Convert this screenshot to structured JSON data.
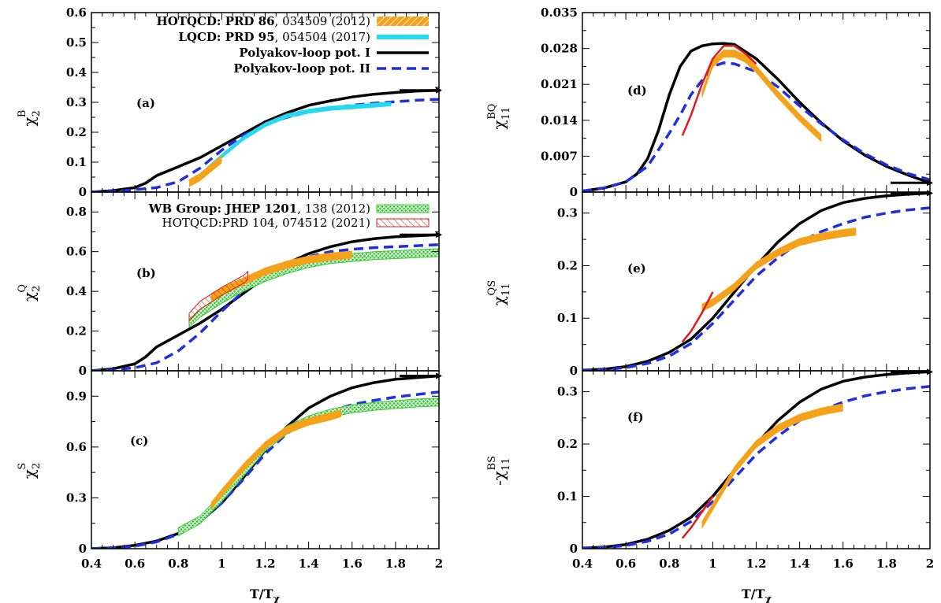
{
  "colors": {
    "hotqcd_band": "#f5a21b",
    "lqcd_band": "#26d9f0",
    "polyakov_I": "#000000",
    "polyakov_II": "#1f2fe0",
    "wb_band": "#33cc33",
    "hotqcd2021": "#e01a1a"
  },
  "legend_top": [
    {
      "label_bold": "HOTQCD: PRD ",
      "label_vol": "86",
      "label_rest": ", 034509 (2012)",
      "style": "hatched-orange"
    },
    {
      "label_bold": "LQCD: PRD ",
      "label_vol": "95",
      "label_rest": ", 054504 (2017)",
      "style": "solid-cyan"
    },
    {
      "label_bold": "Polyakov-loop pot. I",
      "label_vol": "",
      "label_rest": "",
      "style": "solid-black"
    },
    {
      "label_bold": "Polyakov-loop pot. II",
      "label_vol": "",
      "label_rest": "",
      "style": "dashed-blue"
    }
  ],
  "legend_mid": [
    {
      "label_bold": "WB Group: JHEP ",
      "label_vol": "1201",
      "label_rest": ", 138 (2012)",
      "style": "crosshatch-green"
    },
    {
      "label_bold": "",
      "label_vol": "",
      "label_rest": "HOTQCD:PRD 104, 074512 (2021)",
      "style": "hatch-red"
    }
  ],
  "xlabel": "T/T",
  "xlabel_sub": "χ",
  "chart_data": [
    {
      "type": "line",
      "tag": "(a)",
      "ylabel": "χ",
      "ylabel_sub": "2",
      "ylabel_sup": "B",
      "xlim": [
        0.4,
        2.0
      ],
      "ylim": [
        0,
        0.6
      ],
      "xticks": [
        "0.4",
        "0.6",
        "0.8",
        "1",
        "1.2",
        "1.4",
        "1.6",
        "1.8",
        "2"
      ],
      "yticks": [
        "0",
        "0.1",
        "0.2",
        "0.3",
        "0.4",
        "0.5",
        "0.6"
      ],
      "series": [
        {
          "name": "Polyakov-loop pot. I",
          "style": "solid-black",
          "x": [
            0.4,
            0.5,
            0.6,
            0.65,
            0.7,
            0.8,
            0.9,
            1.0,
            1.1,
            1.2,
            1.3,
            1.4,
            1.5,
            1.6,
            1.7,
            1.8,
            1.9,
            2.0
          ],
          "y": [
            0,
            0.005,
            0.015,
            0.03,
            0.055,
            0.085,
            0.115,
            0.155,
            0.195,
            0.235,
            0.265,
            0.29,
            0.305,
            0.318,
            0.327,
            0.333,
            0.338,
            0.34
          ]
        },
        {
          "name": "Polyakov-loop pot. II",
          "style": "dashed-blue",
          "x": [
            0.4,
            0.5,
            0.6,
            0.7,
            0.8,
            0.9,
            1.0,
            1.1,
            1.2,
            1.3,
            1.4,
            1.5,
            1.6,
            1.7,
            1.8,
            1.9,
            2.0
          ],
          "y": [
            0,
            0.003,
            0.008,
            0.015,
            0.035,
            0.08,
            0.14,
            0.19,
            0.225,
            0.25,
            0.268,
            0.28,
            0.29,
            0.297,
            0.302,
            0.307,
            0.31
          ]
        },
        {
          "name": "LQCD: PRD 95, 054504 (2017)",
          "style": "band-cyan",
          "x": [
            0.85,
            0.9,
            1.0,
            1.1,
            1.2,
            1.3,
            1.4,
            1.5,
            1.6,
            1.7,
            1.78
          ],
          "y": [
            0.03,
            0.055,
            0.12,
            0.18,
            0.225,
            0.255,
            0.27,
            0.28,
            0.285,
            0.29,
            0.295
          ]
        },
        {
          "name": "HOTQCD: PRD 86, 034509 (2012)",
          "style": "band-orange",
          "x": [
            0.85,
            0.9,
            1.0
          ],
          "y": [
            0.03,
            0.05,
            0.11
          ]
        }
      ]
    },
    {
      "type": "line",
      "tag": "(b)",
      "ylabel": "χ",
      "ylabel_sub": "2",
      "ylabel_sup": "Q",
      "xlim": [
        0.4,
        2.0
      ],
      "ylim": [
        0,
        0.9
      ],
      "xticks": [
        "0.4",
        "0.6",
        "0.8",
        "1",
        "1.2",
        "1.4",
        "1.6",
        "1.8",
        "2"
      ],
      "yticks": [
        "0",
        "0.2",
        "0.4",
        "0.6",
        "0.8"
      ],
      "series": [
        {
          "name": "Polyakov-loop pot. I",
          "style": "solid-black",
          "x": [
            0.4,
            0.5,
            0.6,
            0.65,
            0.7,
            0.8,
            0.9,
            1.0,
            1.1,
            1.2,
            1.3,
            1.4,
            1.5,
            1.6,
            1.7,
            1.8,
            1.9,
            2.0
          ],
          "y": [
            0,
            0.01,
            0.035,
            0.07,
            0.12,
            0.18,
            0.24,
            0.31,
            0.39,
            0.47,
            0.54,
            0.59,
            0.625,
            0.65,
            0.665,
            0.675,
            0.68,
            0.685
          ]
        },
        {
          "name": "Polyakov-loop pot. II",
          "style": "dashed-blue",
          "x": [
            0.4,
            0.5,
            0.6,
            0.7,
            0.8,
            0.9,
            1.0,
            1.1,
            1.2,
            1.3,
            1.4,
            1.5,
            1.6,
            1.7,
            1.8,
            1.9,
            2.0
          ],
          "y": [
            0,
            0.005,
            0.015,
            0.04,
            0.1,
            0.19,
            0.3,
            0.4,
            0.48,
            0.54,
            0.575,
            0.6,
            0.612,
            0.62,
            0.625,
            0.63,
            0.635
          ]
        },
        {
          "name": "WB Group: JHEP 1201, 138 (2012)",
          "style": "band-green",
          "x": [
            0.85,
            0.9,
            1.0,
            1.1,
            1.2,
            1.3,
            1.4,
            1.5,
            1.6,
            1.7,
            1.8,
            1.9,
            2.0
          ],
          "y": [
            0.24,
            0.29,
            0.36,
            0.42,
            0.47,
            0.51,
            0.54,
            0.56,
            0.57,
            0.58,
            0.585,
            0.59,
            0.595
          ]
        },
        {
          "name": "HOTQCD: PRD 86, 034509 (2012)",
          "style": "band-orange",
          "x": [
            0.95,
            1.0,
            1.1,
            1.2,
            1.3,
            1.4,
            1.5,
            1.6
          ],
          "y": [
            0.37,
            0.4,
            0.45,
            0.5,
            0.535,
            0.56,
            0.575,
            0.585
          ]
        },
        {
          "name": "HOTQCD:PRD 104, 074512 (2021)",
          "style": "hatch-red",
          "x": [
            0.85,
            0.9,
            1.0,
            1.1,
            1.12
          ],
          "y": [
            0.27,
            0.33,
            0.4,
            0.46,
            0.48
          ]
        }
      ]
    },
    {
      "type": "line",
      "tag": "(c)",
      "ylabel": "χ",
      "ylabel_sub": "2",
      "ylabel_sup": "S",
      "xlim": [
        0.4,
        2.0
      ],
      "ylim": [
        0,
        1.05
      ],
      "xticks": [
        "0.4",
        "0.6",
        "0.8",
        "1",
        "1.2",
        "1.4",
        "1.6",
        "1.8",
        "2"
      ],
      "yticks": [
        "0",
        "0.3",
        "0.6",
        "0.9"
      ],
      "series": [
        {
          "name": "Polyakov-loop pot. I",
          "style": "solid-black",
          "x": [
            0.4,
            0.5,
            0.6,
            0.7,
            0.8,
            0.9,
            1.0,
            1.1,
            1.2,
            1.3,
            1.4,
            1.5,
            1.6,
            1.7,
            1.8,
            1.9,
            2.0
          ],
          "y": [
            0,
            0.005,
            0.02,
            0.045,
            0.09,
            0.16,
            0.27,
            0.42,
            0.58,
            0.72,
            0.83,
            0.9,
            0.95,
            0.98,
            1.0,
            1.01,
            1.02
          ]
        },
        {
          "name": "Polyakov-loop pot. II",
          "style": "dashed-blue",
          "x": [
            0.4,
            0.5,
            0.6,
            0.7,
            0.8,
            0.9,
            1.0,
            1.1,
            1.2,
            1.3,
            1.4,
            1.5,
            1.6,
            1.7,
            1.8,
            1.9,
            2.0
          ],
          "y": [
            0,
            0.005,
            0.015,
            0.04,
            0.085,
            0.16,
            0.27,
            0.41,
            0.56,
            0.68,
            0.76,
            0.81,
            0.85,
            0.875,
            0.895,
            0.91,
            0.925
          ]
        },
        {
          "name": "WB Group: JHEP 1201, 138 (2012)",
          "style": "band-green",
          "x": [
            0.8,
            0.9,
            1.0,
            1.1,
            1.2,
            1.3,
            1.4,
            1.5,
            1.6,
            1.7,
            1.8,
            1.9,
            2.0
          ],
          "y": [
            0.1,
            0.17,
            0.3,
            0.45,
            0.6,
            0.7,
            0.76,
            0.8,
            0.825,
            0.84,
            0.85,
            0.86,
            0.865
          ]
        },
        {
          "name": "HOTQCD: PRD 86, 034509 (2012)",
          "style": "band-orange",
          "x": [
            0.95,
            1.0,
            1.1,
            1.2,
            1.3,
            1.4,
            1.5,
            1.55
          ],
          "y": [
            0.25,
            0.33,
            0.48,
            0.61,
            0.7,
            0.75,
            0.78,
            0.8
          ]
        }
      ]
    },
    {
      "type": "line",
      "tag": "(d)",
      "ylabel": "χ",
      "ylabel_sub": "11",
      "ylabel_sup": "BQ",
      "xlim": [
        0.4,
        2.0
      ],
      "ylim": [
        0,
        0.035
      ],
      "xticks": [
        "0.4",
        "0.6",
        "0.8",
        "1",
        "1.2",
        "1.4",
        "1.6",
        "1.8",
        "2"
      ],
      "yticks": [
        "0",
        "0.007",
        "0.014",
        "0.021",
        "0.028",
        "0.035"
      ],
      "series": [
        {
          "name": "Polyakov-loop pot. I",
          "style": "solid-black",
          "x": [
            0.4,
            0.5,
            0.6,
            0.65,
            0.7,
            0.75,
            0.8,
            0.85,
            0.9,
            0.95,
            1.0,
            1.05,
            1.1,
            1.2,
            1.3,
            1.4,
            1.5,
            1.6,
            1.7,
            1.8,
            1.9,
            2.0
          ],
          "y": [
            0.0002,
            0.0008,
            0.002,
            0.0035,
            0.0065,
            0.012,
            0.019,
            0.0245,
            0.0275,
            0.0285,
            0.0289,
            0.029,
            0.0288,
            0.026,
            0.022,
            0.0175,
            0.0135,
            0.01,
            0.0072,
            0.005,
            0.0033,
            0.0018
          ]
        },
        {
          "name": "Polyakov-loop pot. II",
          "style": "dashed-blue",
          "x": [
            0.4,
            0.5,
            0.6,
            0.7,
            0.8,
            0.85,
            0.9,
            1.0,
            1.05,
            1.1,
            1.2,
            1.3,
            1.4,
            1.5,
            1.6,
            1.7,
            1.8,
            1.9,
            2.0
          ],
          "y": [
            0.0002,
            0.0008,
            0.002,
            0.005,
            0.0115,
            0.015,
            0.019,
            0.0245,
            0.0252,
            0.025,
            0.0235,
            0.0205,
            0.0168,
            0.0133,
            0.0102,
            0.0075,
            0.0053,
            0.0036,
            0.0024
          ]
        },
        {
          "name": "HOTQCD: PRD 86, 034509 (2012)",
          "style": "band-orange",
          "x": [
            0.95,
            1.0,
            1.05,
            1.1,
            1.15,
            1.2,
            1.3,
            1.4,
            1.5
          ],
          "y": [
            0.019,
            0.025,
            0.027,
            0.027,
            0.026,
            0.024,
            0.019,
            0.0145,
            0.0105
          ]
        },
        {
          "name": "HOTQCD:PRD 104, 074512 (2021)",
          "style": "line-red",
          "x": [
            0.86,
            0.9,
            0.95,
            1.0,
            1.05,
            1.1,
            1.15,
            1.2
          ],
          "y": [
            0.011,
            0.015,
            0.021,
            0.026,
            0.0285,
            0.0285,
            0.027,
            0.025
          ]
        }
      ]
    },
    {
      "type": "line",
      "tag": "(e)",
      "ylabel": "χ",
      "ylabel_sub": "11",
      "ylabel_sup": "QS",
      "xlim": [
        0.4,
        2.0
      ],
      "ylim": [
        0,
        0.34
      ],
      "xticks": [
        "0.4",
        "0.6",
        "0.8",
        "1",
        "1.2",
        "1.4",
        "1.6",
        "1.8",
        "2"
      ],
      "yticks": [
        "0",
        "0.1",
        "0.2",
        "0.3"
      ],
      "series": [
        {
          "name": "Polyakov-loop pot. I",
          "style": "solid-black",
          "x": [
            0.4,
            0.5,
            0.6,
            0.7,
            0.8,
            0.9,
            1.0,
            1.1,
            1.2,
            1.3,
            1.4,
            1.5,
            1.6,
            1.7,
            1.8,
            1.9,
            2.0
          ],
          "y": [
            0.001,
            0.003,
            0.008,
            0.018,
            0.035,
            0.06,
            0.1,
            0.15,
            0.2,
            0.245,
            0.28,
            0.305,
            0.32,
            0.328,
            0.333,
            0.336,
            0.338
          ]
        },
        {
          "name": "Polyakov-loop pot. II",
          "style": "dashed-blue",
          "x": [
            0.4,
            0.5,
            0.6,
            0.7,
            0.8,
            0.9,
            1.0,
            1.1,
            1.2,
            1.3,
            1.4,
            1.5,
            1.6,
            1.7,
            1.8,
            1.9,
            2.0
          ],
          "y": [
            0.001,
            0.002,
            0.006,
            0.014,
            0.028,
            0.052,
            0.09,
            0.135,
            0.18,
            0.215,
            0.245,
            0.265,
            0.28,
            0.292,
            0.3,
            0.306,
            0.31
          ]
        },
        {
          "name": "HOTQCD: PRD 86, 034509 (2012)",
          "style": "band-orange",
          "x": [
            0.95,
            1.0,
            1.1,
            1.2,
            1.3,
            1.4,
            1.5,
            1.6,
            1.66
          ],
          "y": [
            0.12,
            0.13,
            0.16,
            0.2,
            0.225,
            0.245,
            0.255,
            0.262,
            0.265
          ]
        },
        {
          "name": "HOTQCD:PRD 104, 074512 (2021)",
          "style": "line-red",
          "x": [
            0.86,
            0.9,
            0.95,
            1.0
          ],
          "y": [
            0.055,
            0.075,
            0.11,
            0.15
          ]
        }
      ]
    },
    {
      "type": "line",
      "tag": "(f)",
      "ylabel": "-χ",
      "ylabel_sub": "11",
      "ylabel_sup": "BS",
      "xlim": [
        0.4,
        2.0
      ],
      "ylim": [
        0,
        0.34
      ],
      "xticks": [
        "0.4",
        "0.6",
        "0.8",
        "1",
        "1.2",
        "1.4",
        "1.6",
        "1.8",
        "2"
      ],
      "yticks": [
        "0",
        "0.1",
        "0.2",
        "0.3"
      ],
      "series": [
        {
          "name": "Polyakov-loop pot. I",
          "style": "solid-black",
          "x": [
            0.4,
            0.5,
            0.6,
            0.7,
            0.8,
            0.9,
            1.0,
            1.1,
            1.2,
            1.3,
            1.4,
            1.5,
            1.6,
            1.7,
            1.8,
            1.9,
            2.0
          ],
          "y": [
            0.001,
            0.003,
            0.008,
            0.018,
            0.035,
            0.06,
            0.1,
            0.15,
            0.2,
            0.245,
            0.28,
            0.305,
            0.32,
            0.328,
            0.333,
            0.336,
            0.338
          ]
        },
        {
          "name": "Polyakov-loop pot. II",
          "style": "dashed-blue",
          "x": [
            0.4,
            0.5,
            0.6,
            0.7,
            0.8,
            0.9,
            1.0,
            1.1,
            1.2,
            1.3,
            1.4,
            1.5,
            1.6,
            1.7,
            1.8,
            1.9,
            2.0
          ],
          "y": [
            0.001,
            0.002,
            0.006,
            0.014,
            0.028,
            0.052,
            0.09,
            0.135,
            0.18,
            0.215,
            0.245,
            0.265,
            0.28,
            0.292,
            0.3,
            0.306,
            0.31
          ]
        },
        {
          "name": "HOTQCD: PRD 86, 034509 (2012)",
          "style": "band-orange",
          "x": [
            0.95,
            1.0,
            1.1,
            1.2,
            1.3,
            1.4,
            1.5,
            1.6
          ],
          "y": [
            0.045,
            0.08,
            0.15,
            0.2,
            0.23,
            0.25,
            0.262,
            0.27
          ]
        },
        {
          "name": "HOTQCD:PRD 104, 074512 (2021)",
          "style": "line-red",
          "x": [
            0.86,
            0.9,
            0.95,
            1.0
          ],
          "y": [
            0.02,
            0.04,
            0.07,
            0.1
          ]
        }
      ]
    }
  ]
}
